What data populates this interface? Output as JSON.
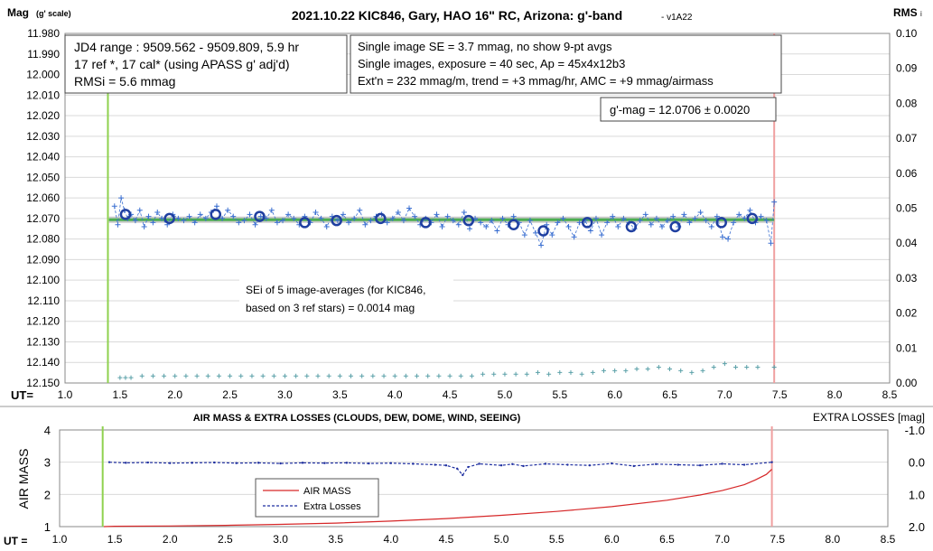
{
  "chart_data": [
    {
      "type": "scatter",
      "title": "2021.10.22 KIC846, Gary, HAO 16\" RC, Arizona: g'-band",
      "title_suffix": "- v1A22",
      "ylabel_left": "Mag",
      "ylabel_left_unit": "(g' scale)",
      "ylabel_right": "RMS",
      "ylabel_right_sub": "i",
      "xlabel": "UT=",
      "x_ticks": [
        "1.0",
        "1.5",
        "2.0",
        "2.5",
        "3.0",
        "3.5",
        "4.0",
        "4.5",
        "5.0",
        "5.5",
        "6.0",
        "6.5",
        "7.0",
        "7.5",
        "8.0",
        "8.5"
      ],
      "y_ticks": [
        "11.980",
        "11.990",
        "12.000",
        "12.010",
        "12.020",
        "12.030",
        "12.040",
        "12.050",
        "12.060",
        "12.070",
        "12.080",
        "12.090",
        "12.100",
        "12.110",
        "12.120",
        "12.130",
        "12.140",
        "12.150"
      ],
      "y2_ticks": [
        "0.10",
        "0.09",
        "0.08",
        "0.07",
        "0.06",
        "0.05",
        "0.04",
        "0.03",
        "0.02",
        "0.01",
        "0.00"
      ],
      "xlim": [
        1.0,
        8.5
      ],
      "ylim": [
        12.15,
        11.98
      ],
      "y2lim": [
        0.0,
        0.1
      ],
      "grid": true,
      "start_marker_x": 1.39,
      "end_marker_x": 7.45,
      "fit_mag": 12.0706,
      "fit_range": [
        1.4,
        7.45
      ],
      "averages": {
        "x": [
          1.55,
          1.95,
          2.37,
          2.77,
          3.18,
          3.47,
          3.87,
          4.28,
          4.67,
          5.08,
          5.35,
          5.75,
          6.15,
          6.55,
          6.97,
          7.25
        ],
        "y": [
          12.068,
          12.07,
          12.068,
          12.069,
          12.072,
          12.071,
          12.07,
          12.072,
          12.071,
          12.073,
          12.076,
          12.072,
          12.074,
          12.074,
          12.072,
          12.07
        ]
      },
      "single_images": {
        "x": [
          1.45,
          1.48,
          1.51,
          1.54,
          1.57,
          1.6,
          1.64,
          1.68,
          1.72,
          1.76,
          1.8,
          1.84,
          1.88,
          1.93,
          1.98,
          2.03,
          2.08,
          2.13,
          2.18,
          2.23,
          2.28,
          2.33,
          2.38,
          2.43,
          2.48,
          2.53,
          2.58,
          2.63,
          2.68,
          2.73,
          2.78,
          2.83,
          2.88,
          2.93,
          2.98,
          3.03,
          3.08,
          3.13,
          3.18,
          3.23,
          3.28,
          3.33,
          3.38,
          3.43,
          3.48,
          3.53,
          3.58,
          3.63,
          3.68,
          3.73,
          3.78,
          3.83,
          3.88,
          3.93,
          3.98,
          4.03,
          4.08,
          4.13,
          4.18,
          4.23,
          4.28,
          4.33,
          4.38,
          4.43,
          4.48,
          4.53,
          4.58,
          4.63,
          4.68,
          4.73,
          4.78,
          4.83,
          4.88,
          4.93,
          4.98,
          5.03,
          5.08,
          5.13,
          5.18,
          5.23,
          5.28,
          5.33,
          5.38,
          5.43,
          5.48,
          5.53,
          5.58,
          5.63,
          5.68,
          5.73,
          5.78,
          5.83,
          5.88,
          5.93,
          5.98,
          6.03,
          6.08,
          6.13,
          6.18,
          6.23,
          6.28,
          6.33,
          6.38,
          6.43,
          6.48,
          6.53,
          6.58,
          6.63,
          6.68,
          6.73,
          6.78,
          6.83,
          6.88,
          6.93,
          6.98,
          7.03,
          7.08,
          7.13,
          7.18,
          7.23,
          7.28,
          7.33,
          7.38,
          7.42,
          7.45
        ],
        "y": [
          12.064,
          12.073,
          12.06,
          12.066,
          12.07,
          12.068,
          12.071,
          12.066,
          12.074,
          12.069,
          12.072,
          12.067,
          12.07,
          12.073,
          12.068,
          12.07,
          12.071,
          12.069,
          12.072,
          12.068,
          12.07,
          12.067,
          12.064,
          12.07,
          12.066,
          12.069,
          12.072,
          12.071,
          12.068,
          12.073,
          12.069,
          12.07,
          12.066,
          12.072,
          12.071,
          12.068,
          12.07,
          12.073,
          12.069,
          12.072,
          12.067,
          12.07,
          12.074,
          12.069,
          12.071,
          12.068,
          12.072,
          12.07,
          12.066,
          12.073,
          12.071,
          12.069,
          12.068,
          12.072,
          12.07,
          12.067,
          12.071,
          12.065,
          12.069,
          12.073,
          12.07,
          12.072,
          12.068,
          12.074,
          12.069,
          12.071,
          12.073,
          12.067,
          12.075,
          12.07,
          12.072,
          12.074,
          12.071,
          12.076,
          12.07,
          12.073,
          12.069,
          12.072,
          12.078,
          12.071,
          12.077,
          12.083,
          12.073,
          12.078,
          12.072,
          12.07,
          12.074,
          12.079,
          12.072,
          12.071,
          12.076,
          12.07,
          12.078,
          12.072,
          12.069,
          12.074,
          12.07,
          12.072,
          12.075,
          12.071,
          12.068,
          12.073,
          12.07,
          12.074,
          12.071,
          12.069,
          12.074,
          12.068,
          12.072,
          12.07,
          12.067,
          12.071,
          12.074,
          12.069,
          12.079,
          12.08,
          12.072,
          12.068,
          12.07,
          12.066,
          12.072,
          12.069,
          12.071,
          12.082,
          12.062
        ]
      },
      "rms_points": {
        "x": [
          1.5,
          1.55,
          1.6,
          1.7,
          1.8,
          1.9,
          2.0,
          2.1,
          2.2,
          2.3,
          2.4,
          2.5,
          2.6,
          2.7,
          2.8,
          2.9,
          3.0,
          3.1,
          3.2,
          3.3,
          3.4,
          3.5,
          3.6,
          3.7,
          3.8,
          3.9,
          4.0,
          4.1,
          4.2,
          4.3,
          4.4,
          4.5,
          4.6,
          4.7,
          4.8,
          4.9,
          5.0,
          5.1,
          5.2,
          5.3,
          5.4,
          5.5,
          5.6,
          5.7,
          5.8,
          5.9,
          6.0,
          6.1,
          6.2,
          6.3,
          6.4,
          6.5,
          6.6,
          6.7,
          6.8,
          6.9,
          7.0,
          7.1,
          7.2,
          7.3,
          7.45
        ],
        "y": [
          0.001,
          0.001,
          0.001,
          0.0015,
          0.0015,
          0.0015,
          0.0015,
          0.0015,
          0.0015,
          0.0015,
          0.0015,
          0.0015,
          0.0015,
          0.0015,
          0.0015,
          0.0015,
          0.0015,
          0.0015,
          0.0015,
          0.0015,
          0.0015,
          0.0015,
          0.0015,
          0.0015,
          0.0015,
          0.0015,
          0.0015,
          0.0015,
          0.0015,
          0.0015,
          0.0015,
          0.0015,
          0.0015,
          0.0015,
          0.002,
          0.002,
          0.002,
          0.002,
          0.002,
          0.0025,
          0.002,
          0.0025,
          0.0025,
          0.002,
          0.0025,
          0.003,
          0.003,
          0.003,
          0.0035,
          0.0035,
          0.004,
          0.0035,
          0.003,
          0.0025,
          0.003,
          0.004,
          0.005,
          0.004,
          0.004,
          0.004,
          0.004
        ]
      },
      "annotations": [
        [
          "JD4 range : 9509.562 - 9509.809,  5.9  hr",
          "17 ref *, 17 cal* (using APASS g' adj'd)",
          "RMSi = 5.6 mmag"
        ],
        [
          "Single image SE = 3.7 mmag, no show  9-pt avgs",
          "Single images, exposure = 40 sec, Ap = 45x4x12b3",
          "Ext'n = 232 mmag/m, trend = +3 mmag/hr, AMC = +9 mmag/airmass"
        ],
        [
          "g'-mag = 12.0706 ± 0.0020"
        ],
        [
          "SEi of 5 image-averages (for KIC846,",
          "based on 3 ref stars) = 0.0014 mag"
        ]
      ],
      "colors": {
        "avg": "#1f3fa0",
        "single": "#3a6fd1",
        "fit": "#4caf50",
        "rms": "#5aa0a8",
        "start": "#8fd14f",
        "end": "#f0a0a0"
      }
    },
    {
      "type": "line",
      "title": "AIR MASS & EXTRA LOSSES (CLOUDS, DEW, DOME, WIND, SEEING)",
      "ylabel_left": "AIR MASS",
      "ylabel_right": "EXTRA LOSSES [mag]",
      "xlabel": "UT =",
      "x_ticks": [
        "1.0",
        "1.5",
        "2.0",
        "2.5",
        "3.0",
        "3.5",
        "4.0",
        "4.5",
        "5.0",
        "5.5",
        "6.0",
        "6.5",
        "7.0",
        "7.5",
        "8.0",
        "8.5"
      ],
      "y_ticks": [
        "4",
        "3",
        "2",
        "1"
      ],
      "y2_ticks": [
        "-1.0",
        "0.0",
        "1.0",
        "2.0"
      ],
      "xlim": [
        1.0,
        8.5
      ],
      "ylim": [
        1,
        4
      ],
      "y2lim": [
        -1.0,
        2.0
      ],
      "series": [
        {
          "name": "AIR MASS",
          "x": [
            1.4,
            1.5,
            2.0,
            2.5,
            3.0,
            3.5,
            4.0,
            4.5,
            5.0,
            5.5,
            6.0,
            6.5,
            6.8,
            7.0,
            7.2,
            7.3,
            7.4,
            7.45
          ],
          "y": [
            1.0,
            1.01,
            1.02,
            1.04,
            1.07,
            1.11,
            1.17,
            1.25,
            1.35,
            1.47,
            1.62,
            1.82,
            1.98,
            2.12,
            2.3,
            2.45,
            2.62,
            2.78
          ]
        },
        {
          "name": "Extra Losses",
          "x": [
            1.45,
            1.6,
            1.8,
            2.0,
            2.2,
            2.4,
            2.6,
            2.8,
            3.0,
            3.2,
            3.4,
            3.6,
            3.8,
            4.0,
            4.2,
            4.4,
            4.5,
            4.6,
            4.65,
            4.7,
            4.8,
            5.0,
            5.1,
            5.2,
            5.4,
            5.6,
            5.8,
            6.0,
            6.2,
            6.4,
            6.6,
            6.8,
            7.0,
            7.2,
            7.45
          ],
          "y": [
            0.0,
            0.02,
            0.01,
            0.03,
            0.02,
            0.01,
            0.03,
            0.02,
            0.04,
            0.02,
            0.03,
            0.02,
            0.04,
            0.03,
            0.05,
            0.08,
            0.1,
            0.2,
            0.4,
            0.15,
            0.05,
            0.1,
            0.06,
            0.12,
            0.05,
            0.08,
            0.1,
            0.04,
            0.12,
            0.06,
            0.08,
            0.1,
            0.05,
            0.08,
            0.0
          ]
        }
      ],
      "legend": "center-left",
      "start_marker_x": 1.39,
      "end_marker_x": 7.45,
      "colors": {
        "airmass": "#d62728",
        "losses": "#1f2fa0",
        "start": "#8fd14f",
        "end": "#f0a0a0"
      }
    }
  ]
}
